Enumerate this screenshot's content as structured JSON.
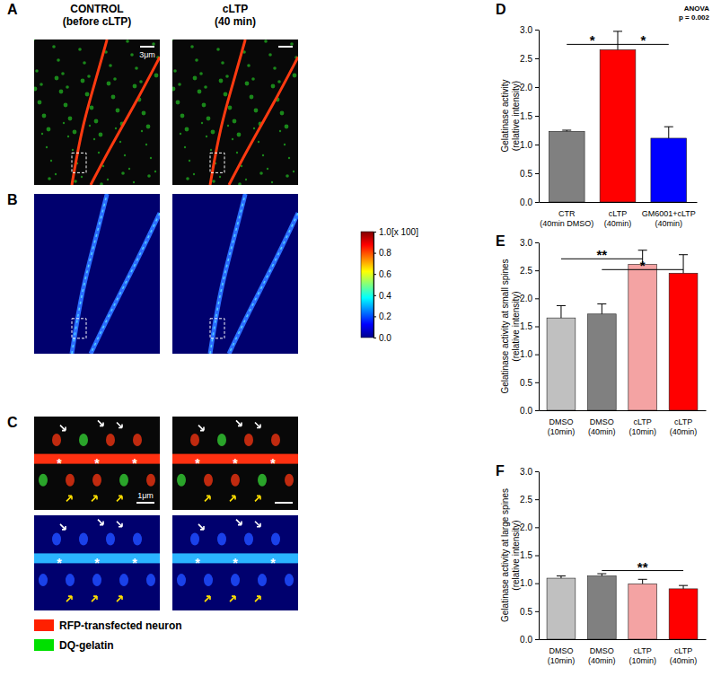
{
  "panel_labels": [
    "A",
    "B",
    "C",
    "D",
    "E",
    "F"
  ],
  "image_panels": {
    "column_titles": [
      "CONTROL\n(before cLTP)",
      "cLTP\n(40 min)"
    ],
    "scale_bars": [
      "3μm",
      "1μm"
    ],
    "spine_marker": "*",
    "colorbar": {
      "range": [
        0,
        1
      ],
      "ticks": [
        {
          "value": 0,
          "label": "0.0"
        },
        0.2,
        0.4,
        0.6,
        0.8,
        {
          "value": 1,
          "label": "1.0[x 100]"
        }
      ]
    },
    "legend": [
      {
        "name": "RFP-transfected neuron",
        "color": "#ff2000"
      },
      {
        "name": "DQ-gelatin",
        "color": "#00e000"
      }
    ]
  },
  "chart_data": [
    {
      "type": "bar",
      "y_label": "Gelatinase activity\n(relative intensity)",
      "categories": [
        "CTR\n(40min DMSO)",
        "cLTP\n(40min)",
        "GM6001+cLTP\n(40min)"
      ],
      "values": [
        1.23,
        2.65,
        1.11
      ],
      "errors": [
        0.02,
        0.32,
        0.2
      ],
      "colors": [
        "#808080",
        "#ff0000",
        "#0000ff"
      ],
      "ylim": [
        0,
        3
      ],
      "yticks": [
        {
          "value": 0,
          "label": "0.0"
        },
        0.5,
        {
          "value": 1,
          "label": "1.0"
        },
        1.5,
        {
          "value": 2,
          "label": "2.0"
        },
        2.5,
        {
          "value": 3,
          "label": "3.0"
        }
      ],
      "annotations": [
        {
          "text": "*",
          "between": [
            0,
            1
          ]
        },
        {
          "text": "*",
          "between": [
            1,
            2
          ]
        },
        {
          "text": "ANOVA\np = 0.002"
        }
      ]
    },
    {
      "type": "bar",
      "y_label": "Gelatinase activity at small spines\n(relative intensity)",
      "categories": [
        "DMSO\n(10min)",
        "DMSO\n(40min)",
        "cLTP\n(10min)",
        "cLTP\n(40min)"
      ],
      "values": [
        1.65,
        1.72,
        2.61,
        2.45
      ],
      "errors": [
        0.22,
        0.18,
        0.25,
        0.33
      ],
      "colors": [
        "#c0c0c0",
        "#808080",
        "#f4a3a3",
        "#ff0000"
      ],
      "ylim": [
        0,
        3
      ],
      "yticks": [
        {
          "value": 0,
          "label": "0.0"
        },
        0.5,
        {
          "value": 1,
          "label": "1.0"
        },
        1.5,
        {
          "value": 2,
          "label": "2.0"
        },
        2.5,
        {
          "value": 3,
          "label": "3.0"
        }
      ],
      "annotations": [
        {
          "text": "**",
          "between": [
            0,
            2
          ]
        },
        {
          "text": "*",
          "between": [
            1,
            3
          ]
        }
      ]
    },
    {
      "type": "bar",
      "y_label": "Gelatinase activity at large spines\n(relative intensity)",
      "categories": [
        "DMSO\n(10min)",
        "DMSO\n(40min)",
        "cLTP\n(10min)",
        "cLTP\n(40min)"
      ],
      "values": [
        1.09,
        1.13,
        0.99,
        0.9
      ],
      "errors": [
        0.04,
        0.04,
        0.08,
        0.06
      ],
      "colors": [
        "#c0c0c0",
        "#808080",
        "#f4a3a3",
        "#ff0000"
      ],
      "ylim": [
        0,
        3
      ],
      "yticks": [
        {
          "value": 0,
          "label": "0.0"
        },
        0.5,
        {
          "value": 1,
          "label": "1.0"
        },
        1.5,
        {
          "value": 2,
          "label": "2.0"
        },
        2.5,
        {
          "value": 3,
          "label": "3.0"
        }
      ],
      "annotations": [
        {
          "text": "**",
          "between": [
            1,
            3
          ]
        }
      ]
    }
  ]
}
